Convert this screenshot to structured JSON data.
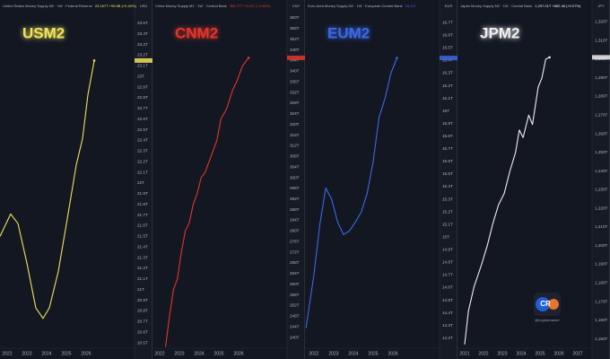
{
  "chart_data": [
    {
      "type": "line",
      "label": "USM2",
      "title": "United States Money Supply M2 · 1W · Federal Reserve",
      "change": "23.167T +99.6B (+0.43%)",
      "unit": "USD",
      "color": "#f2e35c",
      "x": [
        2021.64,
        2022.18,
        2022.55,
        2023.0,
        2023.45,
        2023.82,
        2024.14,
        2024.59,
        2025.05,
        2025.5,
        2025.82,
        2026.09,
        2026.41
      ],
      "values": [
        21.5,
        21.71,
        21.62,
        21.25,
        20.83,
        20.73,
        20.83,
        21.17,
        21.67,
        22.17,
        22.42,
        22.83,
        23.15
      ],
      "xlim": [
        2021.64,
        2028.45
      ],
      "xticks": [
        2022,
        2023,
        2024,
        2025,
        2026
      ],
      "ylim": [
        20.45,
        23.6
      ],
      "yticks": [
        {
          "value": 20.5,
          "label": "20.5T"
        },
        {
          "value": 20.6,
          "label": "20.6T"
        },
        {
          "value": 20.7,
          "label": "20.7T"
        },
        {
          "value": 20.8,
          "label": "20.8T"
        },
        {
          "value": 20.9,
          "label": "20.9T"
        },
        {
          "value": 21,
          "label": "21T"
        },
        {
          "value": 21.1,
          "label": "21.1T"
        },
        {
          "value": 21.2,
          "label": "21.2T"
        },
        {
          "value": 21.3,
          "label": "21.3T"
        },
        {
          "value": 21.4,
          "label": "21.4T"
        },
        {
          "value": 21.5,
          "label": "21.5T"
        },
        {
          "value": 21.6,
          "label": "21.6T"
        },
        {
          "value": 21.7,
          "label": "21.7T"
        },
        {
          "value": 21.8,
          "label": "21.8T"
        },
        {
          "value": 21.9,
          "label": "21.9T"
        },
        {
          "value": 22,
          "label": "22T"
        },
        {
          "value": 22.1,
          "label": "22.1T"
        },
        {
          "value": 22.2,
          "label": "22.2T"
        },
        {
          "value": 22.3,
          "label": "22.3T"
        },
        {
          "value": 22.4,
          "label": "22.4T"
        },
        {
          "value": 22.5,
          "label": "22.5T"
        },
        {
          "value": 22.6,
          "label": "22.6T"
        },
        {
          "value": 22.7,
          "label": "22.7T"
        },
        {
          "value": 22.8,
          "label": "22.8T"
        },
        {
          "value": 22.9,
          "label": "22.9T"
        },
        {
          "value": 23,
          "label": "23T"
        },
        {
          "value": 23.1,
          "label": "23.1T"
        },
        {
          "value": 23.2,
          "label": "23.2T"
        },
        {
          "value": 23.3,
          "label": "23.3T"
        },
        {
          "value": 23.4,
          "label": "23.4T"
        },
        {
          "value": 23.5,
          "label": "23.5T"
        }
      ]
    },
    {
      "type": "line",
      "label": "CNM2",
      "title": "China Money Supply M2 · 1W · Central Bank",
      "change": "356.77T +3.04T (+0.86%)",
      "unit": "CNY",
      "color": "#e2362c",
      "x": [
        2022.3,
        2022.5,
        2022.7,
        2022.9,
        2023.1,
        2023.3,
        2023.5,
        2023.7,
        2023.9,
        2024.1,
        2024.3,
        2024.6,
        2024.9,
        2025.1,
        2025.4,
        2025.7,
        2025.9,
        2026.2,
        2026.5
      ],
      "values": [
        236.5,
        248,
        258,
        262,
        272,
        280,
        283,
        290,
        294,
        300,
        302,
        308,
        314,
        322,
        326,
        333,
        336,
        342,
        345
      ],
      "xlim": [
        2021.64,
        2028.45
      ],
      "xticks": [
        2022,
        2023,
        2024,
        2025,
        2026
      ],
      "ylim": [
        236,
        362
      ],
      "yticks": [
        {
          "value": 240,
          "label": "240T"
        },
        {
          "value": 244,
          "label": "244T"
        },
        {
          "value": 248,
          "label": "248T"
        },
        {
          "value": 252,
          "label": "252T"
        },
        {
          "value": 256,
          "label": "256T"
        },
        {
          "value": 260,
          "label": "260T"
        },
        {
          "value": 264,
          "label": "264T"
        },
        {
          "value": 268,
          "label": "268T"
        },
        {
          "value": 272,
          "label": "272T"
        },
        {
          "value": 276,
          "label": "276T"
        },
        {
          "value": 280,
          "label": "280T"
        },
        {
          "value": 284,
          "label": "284T"
        },
        {
          "value": 288,
          "label": "288T"
        },
        {
          "value": 292,
          "label": "292T"
        },
        {
          "value": 296,
          "label": "296T"
        },
        {
          "value": 300,
          "label": "300T"
        },
        {
          "value": 304,
          "label": "304T"
        },
        {
          "value": 308,
          "label": "308T"
        },
        {
          "value": 312,
          "label": "312T"
        },
        {
          "value": 316,
          "label": "316T"
        },
        {
          "value": 320,
          "label": "320T"
        },
        {
          "value": 324,
          "label": "324T"
        },
        {
          "value": 328,
          "label": "328T"
        },
        {
          "value": 332,
          "label": "332T"
        },
        {
          "value": 336,
          "label": "336T"
        },
        {
          "value": 340,
          "label": "340T"
        },
        {
          "value": 344,
          "label": "344T"
        },
        {
          "value": 348,
          "label": "348T"
        },
        {
          "value": 352,
          "label": "352T"
        },
        {
          "value": 356,
          "label": "356T"
        },
        {
          "value": 360,
          "label": "360T"
        }
      ]
    },
    {
      "type": "line",
      "label": "EUM2",
      "title": "Euro Area Money Supply M2 · 1W · European Central Bank",
      "change": "16.41T",
      "unit": "EUR",
      "color": "#3b69e8",
      "x": [
        2021.6,
        2022.0,
        2022.3,
        2022.6,
        2022.9,
        2023.2,
        2023.5,
        2023.8,
        2024.1,
        2024.4,
        2024.7,
        2025.0,
        2025.3,
        2025.6,
        2025.9,
        2026.2
      ],
      "values": [
        14.28,
        14.7,
        15.1,
        15.39,
        15.3,
        15.12,
        15.02,
        15.05,
        15.12,
        15.2,
        15.35,
        15.6,
        15.95,
        16.1,
        16.3,
        16.42
      ],
      "xlim": [
        2021.55,
        2028.36
      ],
      "xticks": [
        2022,
        2023,
        2024,
        2025,
        2026
      ],
      "ylim": [
        14.12,
        16.78
      ],
      "yticks": [
        {
          "value": 14.2,
          "label": "14.2T"
        },
        {
          "value": 14.3,
          "label": "14.3T"
        },
        {
          "value": 14.4,
          "label": "14.4T"
        },
        {
          "value": 14.5,
          "label": "14.5T"
        },
        {
          "value": 14.6,
          "label": "14.6T"
        },
        {
          "value": 14.7,
          "label": "14.7T"
        },
        {
          "value": 14.8,
          "label": "14.8T"
        },
        {
          "value": 14.9,
          "label": "14.9T"
        },
        {
          "value": 15,
          "label": "15T"
        },
        {
          "value": 15.1,
          "label": "15.1T"
        },
        {
          "value": 15.2,
          "label": "15.2T"
        },
        {
          "value": 15.3,
          "label": "15.3T"
        },
        {
          "value": 15.4,
          "label": "15.4T"
        },
        {
          "value": 15.5,
          "label": "15.5T"
        },
        {
          "value": 15.6,
          "label": "15.6T"
        },
        {
          "value": 15.7,
          "label": "15.7T"
        },
        {
          "value": 15.8,
          "label": "15.8T"
        },
        {
          "value": 15.9,
          "label": "15.9T"
        },
        {
          "value": 16,
          "label": "16T"
        },
        {
          "value": 16.1,
          "label": "16.1T"
        },
        {
          "value": 16.2,
          "label": "16.2T"
        },
        {
          "value": 16.3,
          "label": "16.3T"
        },
        {
          "value": 16.4,
          "label": "16.4T"
        },
        {
          "value": 16.5,
          "label": "16.5T"
        },
        {
          "value": 16.6,
          "label": "16.6T"
        },
        {
          "value": 16.7,
          "label": "16.7T"
        }
      ]
    },
    {
      "type": "line",
      "label": "JPM2",
      "title": "Japan Money Supply M2 · 1W · Central Bank",
      "change": "1,297.01T +882.48 (+0.07%)",
      "unit": "JPY",
      "color": "#f0f0f0",
      "x": [
        2021.0,
        2021.2,
        2021.5,
        2021.9,
        2022.2,
        2022.5,
        2022.8,
        2023.1,
        2023.4,
        2023.7,
        2023.9,
        2024.1,
        2024.4,
        2024.6,
        2024.9,
        2025.1,
        2025.3,
        2025.5
      ],
      "values": [
        1147,
        1165,
        1178,
        1190,
        1200,
        1212,
        1222,
        1228,
        1240,
        1250,
        1262,
        1258,
        1270,
        1265,
        1285,
        1290,
        1300,
        1301
      ],
      "xlim": [
        2020.62,
        2027.76
      ],
      "xticks": [
        2021,
        2022,
        2023,
        2024,
        2025,
        2026,
        2027
      ],
      "ylim": [
        1145,
        1325
      ],
      "yticks": [
        {
          "value": 1150,
          "label": "1,150T"
        },
        {
          "value": 1160,
          "label": "1,160T"
        },
        {
          "value": 1170,
          "label": "1,170T"
        },
        {
          "value": 1180,
          "label": "1,180T"
        },
        {
          "value": 1190,
          "label": "1,190T"
        },
        {
          "value": 1200,
          "label": "1,200T"
        },
        {
          "value": 1210,
          "label": "1,210T"
        },
        {
          "value": 1220,
          "label": "1,220T"
        },
        {
          "value": 1230,
          "label": "1,230T"
        },
        {
          "value": 1240,
          "label": "1,240T"
        },
        {
          "value": 1250,
          "label": "1,250T"
        },
        {
          "value": 1260,
          "label": "1,260T"
        },
        {
          "value": 1270,
          "label": "1,270T"
        },
        {
          "value": 1280,
          "label": "1,280T"
        },
        {
          "value": 1290,
          "label": "1,290T"
        },
        {
          "value": 1300,
          "label": "1,300T"
        },
        {
          "value": 1310,
          "label": "1,310T"
        },
        {
          "value": 1320,
          "label": "1,320T"
        }
      ]
    }
  ],
  "logo": {
    "text": "CR",
    "handle": "@cryptoroamer"
  }
}
